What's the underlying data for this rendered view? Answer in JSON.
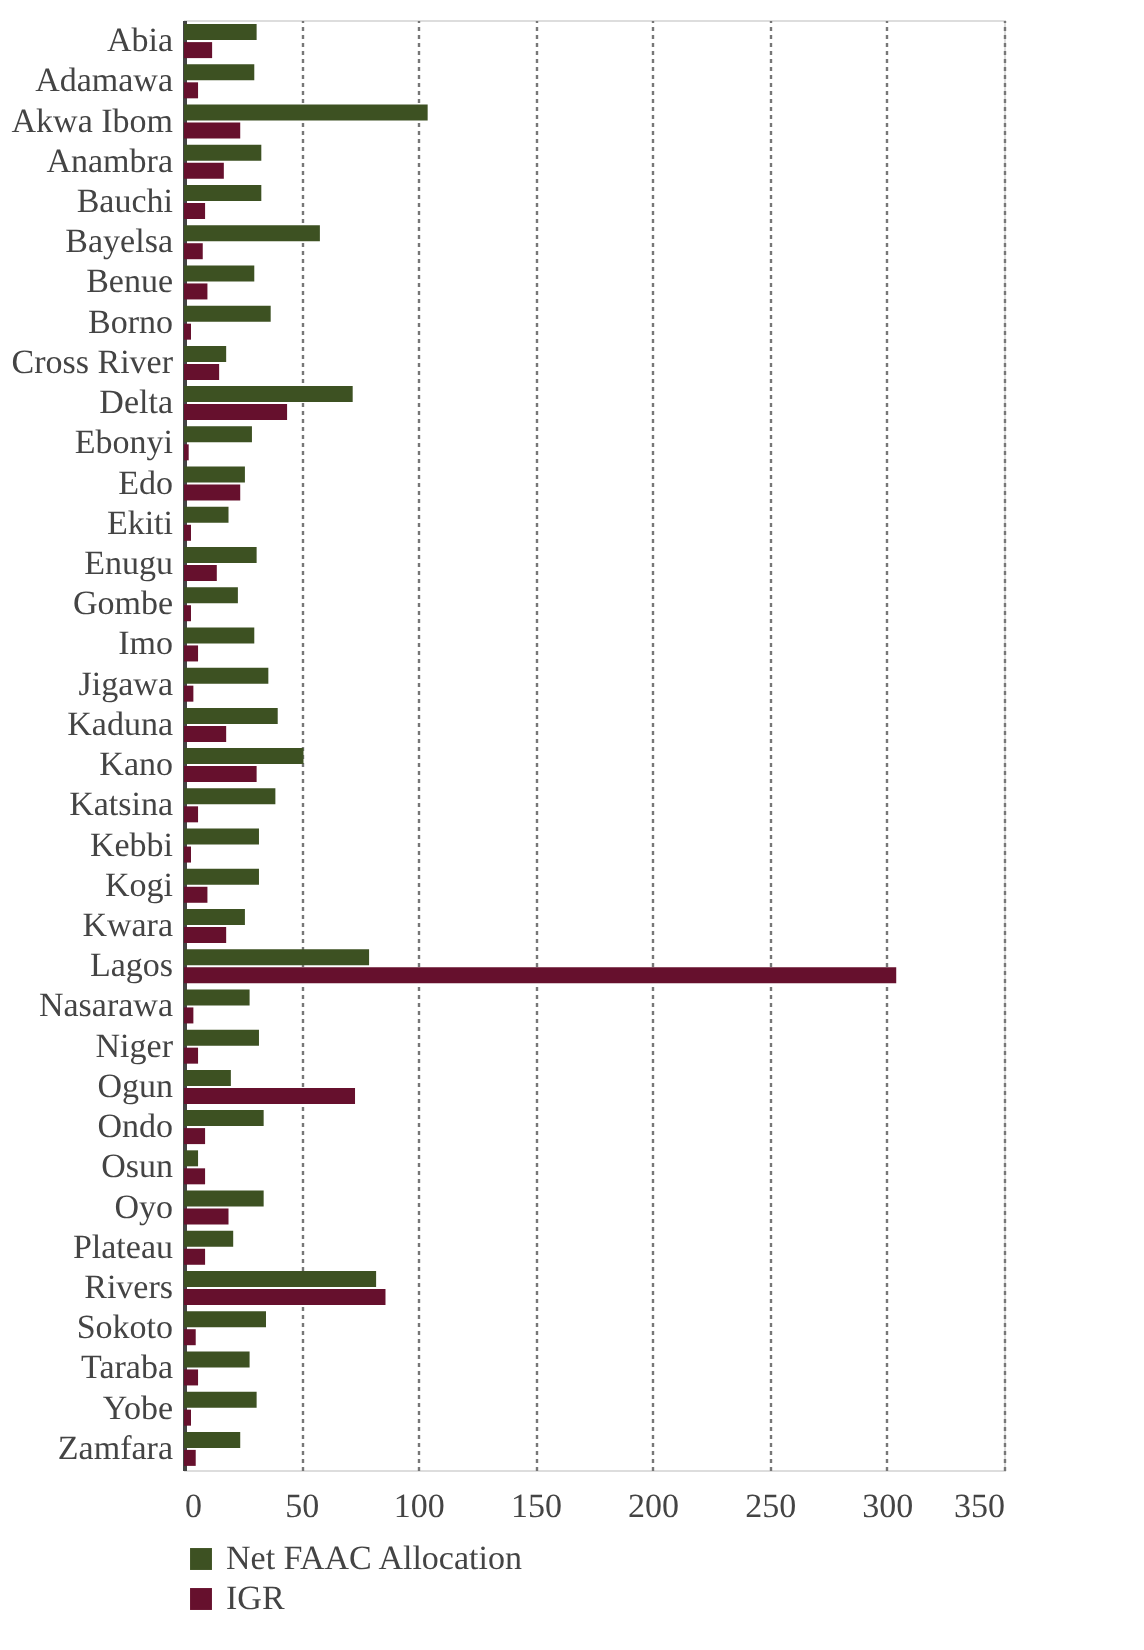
{
  "chart_data": {
    "type": "bar",
    "orientation": "horizontal",
    "categories": [
      "Abia",
      "Adamawa",
      "Akwa Ibom",
      "Anambra",
      "Bauchi",
      "Bayelsa",
      "Benue",
      "Borno",
      "Cross River",
      "Delta",
      "Ebonyi",
      "Edo",
      "Ekiti",
      "Enugu",
      "Gombe",
      "Imo",
      "Jigawa",
      "Kaduna",
      "Kano",
      "Katsina",
      "Kebbi",
      "Kogi",
      "Kwara",
      "Lagos",
      "Nasarawa",
      "Niger",
      "Ogun",
      "Ondo",
      "Osun",
      "Oyo",
      "Plateau",
      "Rivers",
      "Sokoto",
      "Taraba",
      "Yobe",
      "Zamfara"
    ],
    "series": [
      {
        "name": "Net FAAC Allocation",
        "color": "#3d5122",
        "values": [
          31,
          30,
          104,
          33,
          33,
          58,
          30,
          37,
          18,
          72,
          29,
          26,
          19,
          31,
          23,
          30,
          36,
          40,
          51,
          39,
          32,
          32,
          26,
          79,
          28,
          32,
          20,
          34,
          6,
          34,
          21,
          82,
          35,
          28,
          31,
          24
        ]
      },
      {
        "name": "IGR",
        "color": "#66102d",
        "values": [
          12,
          6,
          24,
          17,
          9,
          8,
          10,
          3,
          15,
          44,
          2,
          24,
          3,
          14,
          3,
          6,
          4,
          18,
          31,
          6,
          3,
          10,
          18,
          304,
          4,
          6,
          73,
          9,
          9,
          19,
          9,
          86,
          5,
          6,
          3,
          5
        ]
      }
    ],
    "xlim": [
      0,
      350
    ],
    "xticks": [
      0,
      50,
      100,
      150,
      200,
      250,
      300,
      350
    ],
    "grid": "x",
    "legend": "bottom"
  }
}
